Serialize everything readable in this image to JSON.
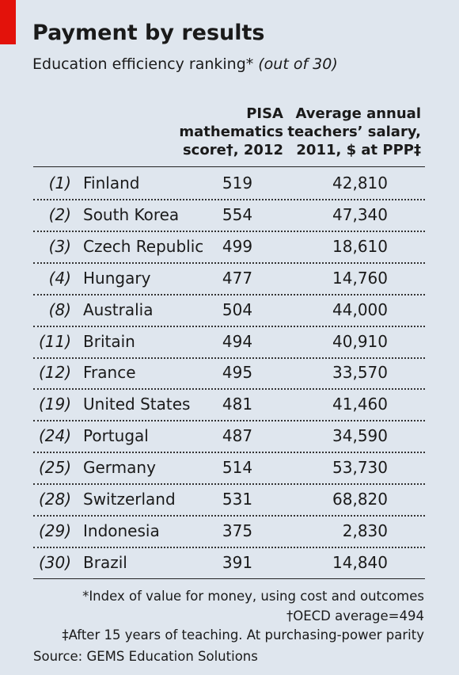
{
  "header": {
    "title": "Payment by results",
    "subtitle": "Education efficiency ranking*",
    "subtitle_note": "(out of 30)"
  },
  "table": {
    "columns": [
      "PISA mathematics score†, 2012",
      "Average annual teachers’ salary, 2011, $ at PPP‡"
    ],
    "rows": [
      [
        "(1)",
        "Finland",
        "519",
        "42,810"
      ],
      [
        "(2)",
        "South Korea",
        "554",
        "47,340"
      ],
      [
        "(3)",
        "Czech Republic",
        "499",
        "18,610"
      ],
      [
        "(4)",
        "Hungary",
        "477",
        "14,760"
      ],
      [
        "(8)",
        "Australia",
        "504",
        "44,000"
      ],
      [
        "(11)",
        "Britain",
        "494",
        "40,910"
      ],
      [
        "(12)",
        "France",
        "495",
        "33,570"
      ],
      [
        "(19)",
        "United States",
        "481",
        "41,460"
      ],
      [
        "(24)",
        "Portugal",
        "487",
        "34,590"
      ],
      [
        "(25)",
        "Germany",
        "514",
        "53,730"
      ],
      [
        "(28)",
        "Switzerland",
        "531",
        "68,820"
      ],
      [
        "(29)",
        "Indonesia",
        "375",
        "2,830"
      ],
      [
        "(30)",
        "Brazil",
        "391",
        "14,840"
      ]
    ]
  },
  "footnotes": [
    "*Index of value for money, using cost and outcomes",
    "†OECD average=494",
    "‡After 15 years of teaching. At purchasing-power parity"
  ],
  "source": "Source: GEMS Education Solutions"
}
